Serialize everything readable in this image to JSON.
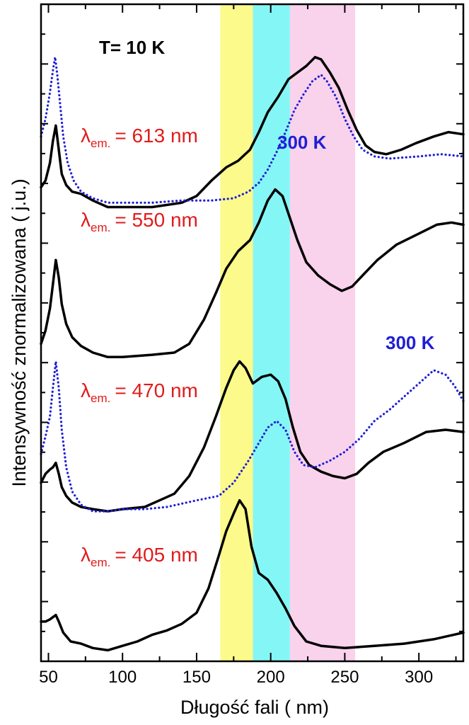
{
  "chart_data": {
    "type": "line",
    "title": "",
    "xlabel": "Długość fali  ( nm)",
    "ylabel": "Intensywność znormalizowana  ( j.u.)",
    "xlim": [
      45,
      330
    ],
    "xticks": [
      50,
      100,
      150,
      200,
      250,
      300
    ],
    "y_scale": "arbitrary units, vertically offset spectra",
    "y_tick_count": 22,
    "legend": "none",
    "grid": false,
    "annotations": {
      "temperature": "T= 10 K",
      "room_temp_top": "300 K",
      "room_temp_mid": "300 K"
    },
    "emission_labels": [
      {
        "symbol": "λ",
        "sub": "em.",
        "text": "= 613 nm"
      },
      {
        "symbol": "λ",
        "sub": "em.",
        "text": "= 550 nm"
      },
      {
        "symbol": "λ",
        "sub": "em.",
        "text": "= 470 nm"
      },
      {
        "symbol": "λ",
        "sub": "em.",
        "text": "= 405 nm"
      }
    ],
    "bands": [
      {
        "x0": 166,
        "x1": 188,
        "color": "#fbfa8a"
      },
      {
        "x0": 188,
        "x1": 213,
        "color": "#85f6f6"
      },
      {
        "x0": 213,
        "x1": 257,
        "color": "#f9d2ec"
      }
    ],
    "series": [
      {
        "curve": "613 nm, 10 K",
        "style": "solid",
        "color": "#000000",
        "points": [
          [
            45,
            10.05
          ],
          [
            48,
            10.2
          ],
          [
            51,
            10.6
          ],
          [
            53,
            11.1
          ],
          [
            55,
            11.45
          ],
          [
            57,
            10.9
          ],
          [
            59,
            10.35
          ],
          [
            62,
            10.1
          ],
          [
            66,
            9.95
          ],
          [
            72,
            9.9
          ],
          [
            80,
            9.75
          ],
          [
            90,
            9.6
          ],
          [
            100,
            9.6
          ],
          [
            120,
            9.6
          ],
          [
            140,
            9.7
          ],
          [
            150,
            9.85
          ],
          [
            160,
            10.2
          ],
          [
            170,
            10.5
          ],
          [
            178,
            10.65
          ],
          [
            186,
            10.9
          ],
          [
            192,
            11.3
          ],
          [
            198,
            11.75
          ],
          [
            205,
            12.1
          ],
          [
            212,
            12.5
          ],
          [
            218,
            12.65
          ],
          [
            224,
            12.8
          ],
          [
            230,
            13.0
          ],
          [
            234,
            12.95
          ],
          [
            240,
            12.65
          ],
          [
            246,
            12.3
          ],
          [
            252,
            11.8
          ],
          [
            258,
            11.35
          ],
          [
            264,
            11.0
          ],
          [
            270,
            10.85
          ],
          [
            278,
            10.8
          ],
          [
            288,
            10.9
          ],
          [
            298,
            11.05
          ],
          [
            310,
            11.2
          ],
          [
            320,
            11.3
          ],
          [
            330,
            11.25
          ]
        ]
      },
      {
        "curve": "613 nm, 300 K",
        "style": "dotted",
        "color": "#1f1fd6",
        "points": [
          [
            45,
            11.2
          ],
          [
            48,
            11.6
          ],
          [
            51,
            12.2
          ],
          [
            53,
            12.7
          ],
          [
            54.5,
            13.0
          ],
          [
            56,
            12.6
          ],
          [
            58,
            11.9
          ],
          [
            60,
            11.2
          ],
          [
            63,
            10.6
          ],
          [
            67,
            10.2
          ],
          [
            72,
            9.95
          ],
          [
            80,
            9.8
          ],
          [
            90,
            9.7
          ],
          [
            100,
            9.7
          ],
          [
            120,
            9.7
          ],
          [
            140,
            9.75
          ],
          [
            160,
            9.75
          ],
          [
            175,
            9.8
          ],
          [
            185,
            9.95
          ],
          [
            192,
            10.15
          ],
          [
            198,
            10.45
          ],
          [
            204,
            10.85
          ],
          [
            210,
            11.3
          ],
          [
            216,
            11.8
          ],
          [
            222,
            12.15
          ],
          [
            228,
            12.45
          ],
          [
            234,
            12.6
          ],
          [
            238,
            12.45
          ],
          [
            244,
            12.1
          ],
          [
            250,
            11.6
          ],
          [
            256,
            11.2
          ],
          [
            262,
            10.9
          ],
          [
            270,
            10.75
          ],
          [
            280,
            10.7
          ],
          [
            300,
            10.75
          ],
          [
            315,
            10.8
          ],
          [
            330,
            10.75
          ]
        ]
      },
      {
        "curve": "550 nm, 10 K",
        "style": "solid",
        "color": "#000000",
        "points": [
          [
            45,
            6.5
          ],
          [
            48,
            6.8
          ],
          [
            51,
            7.3
          ],
          [
            53,
            7.85
          ],
          [
            55,
            8.4
          ],
          [
            57,
            8.0
          ],
          [
            59,
            7.4
          ],
          [
            62,
            6.95
          ],
          [
            66,
            6.65
          ],
          [
            72,
            6.45
          ],
          [
            80,
            6.3
          ],
          [
            90,
            6.2
          ],
          [
            100,
            6.2
          ],
          [
            120,
            6.25
          ],
          [
            135,
            6.3
          ],
          [
            145,
            6.5
          ],
          [
            155,
            7.05
          ],
          [
            163,
            7.65
          ],
          [
            170,
            8.2
          ],
          [
            178,
            8.6
          ],
          [
            186,
            8.85
          ],
          [
            192,
            9.25
          ],
          [
            198,
            9.75
          ],
          [
            203,
            10.0
          ],
          [
            208,
            9.85
          ],
          [
            213,
            9.35
          ],
          [
            218,
            8.85
          ],
          [
            224,
            8.35
          ],
          [
            232,
            8.05
          ],
          [
            240,
            7.85
          ],
          [
            248,
            7.7
          ],
          [
            255,
            7.8
          ],
          [
            262,
            8.05
          ],
          [
            272,
            8.4
          ],
          [
            285,
            8.75
          ],
          [
            300,
            9.0
          ],
          [
            312,
            9.2
          ],
          [
            322,
            9.25
          ],
          [
            330,
            9.2
          ]
        ]
      },
      {
        "curve": "470 nm, 10 K",
        "style": "solid",
        "color": "#000000",
        "points": [
          [
            45,
            3.35
          ],
          [
            48,
            3.55
          ],
          [
            51,
            3.65
          ],
          [
            53,
            3.7
          ],
          [
            55,
            3.8
          ],
          [
            57,
            3.55
          ],
          [
            59,
            3.25
          ],
          [
            62,
            3.05
          ],
          [
            66,
            2.9
          ],
          [
            72,
            2.8
          ],
          [
            80,
            2.75
          ],
          [
            90,
            2.7
          ],
          [
            100,
            2.75
          ],
          [
            115,
            2.8
          ],
          [
            125,
            2.95
          ],
          [
            135,
            3.1
          ],
          [
            145,
            3.5
          ],
          [
            155,
            4.15
          ],
          [
            163,
            4.85
          ],
          [
            170,
            5.5
          ],
          [
            175,
            5.9
          ],
          [
            179,
            6.1
          ],
          [
            183,
            5.95
          ],
          [
            188,
            5.6
          ],
          [
            194,
            5.75
          ],
          [
            200,
            5.8
          ],
          [
            205,
            5.65
          ],
          [
            210,
            5.25
          ],
          [
            215,
            4.6
          ],
          [
            220,
            4.05
          ],
          [
            226,
            3.75
          ],
          [
            234,
            3.6
          ],
          [
            242,
            3.5
          ],
          [
            250,
            3.45
          ],
          [
            258,
            3.55
          ],
          [
            266,
            3.8
          ],
          [
            276,
            4.05
          ],
          [
            290,
            4.25
          ],
          [
            305,
            4.5
          ],
          [
            318,
            4.55
          ],
          [
            330,
            4.5
          ]
        ]
      },
      {
        "curve": "470 nm, 300 K",
        "style": "dotted",
        "color": "#1f1fd6",
        "points": [
          [
            45,
            4.0
          ],
          [
            48,
            4.4
          ],
          [
            51,
            4.85
          ],
          [
            53,
            5.5
          ],
          [
            55,
            6.1
          ],
          [
            57,
            5.5
          ],
          [
            59,
            4.55
          ],
          [
            62,
            3.7
          ],
          [
            66,
            3.15
          ],
          [
            72,
            2.85
          ],
          [
            80,
            2.7
          ],
          [
            90,
            2.7
          ],
          [
            100,
            2.75
          ],
          [
            115,
            2.75
          ],
          [
            130,
            2.8
          ],
          [
            150,
            2.95
          ],
          [
            165,
            3.05
          ],
          [
            175,
            3.35
          ],
          [
            185,
            3.85
          ],
          [
            192,
            4.25
          ],
          [
            198,
            4.6
          ],
          [
            204,
            4.75
          ],
          [
            210,
            4.55
          ],
          [
            216,
            4.05
          ],
          [
            222,
            3.75
          ],
          [
            230,
            3.7
          ],
          [
            240,
            3.85
          ],
          [
            250,
            4.05
          ],
          [
            260,
            4.35
          ],
          [
            270,
            4.75
          ],
          [
            280,
            5.0
          ],
          [
            290,
            5.3
          ],
          [
            300,
            5.6
          ],
          [
            310,
            5.9
          ],
          [
            318,
            5.8
          ],
          [
            324,
            5.55
          ],
          [
            330,
            5.2
          ]
        ]
      },
      {
        "curve": "405 nm, 10 K",
        "style": "solid",
        "color": "#000000",
        "points": [
          [
            45,
            0.2
          ],
          [
            48,
            0.2
          ],
          [
            51,
            0.25
          ],
          [
            53,
            0.3
          ],
          [
            55,
            0.35
          ],
          [
            57,
            0.2
          ],
          [
            60,
            -0.05
          ],
          [
            65,
            -0.25
          ],
          [
            72,
            -0.3
          ],
          [
            80,
            -0.4
          ],
          [
            90,
            -0.45
          ],
          [
            100,
            -0.35
          ],
          [
            110,
            -0.25
          ],
          [
            120,
            -0.1
          ],
          [
            130,
            0.0
          ],
          [
            140,
            0.15
          ],
          [
            150,
            0.4
          ],
          [
            158,
            0.95
          ],
          [
            165,
            1.7
          ],
          [
            170,
            2.25
          ],
          [
            175,
            2.65
          ],
          [
            179,
            2.95
          ],
          [
            183,
            2.75
          ],
          [
            187,
            1.9
          ],
          [
            192,
            1.3
          ],
          [
            198,
            1.15
          ],
          [
            204,
            0.85
          ],
          [
            210,
            0.5
          ],
          [
            216,
            0.1
          ],
          [
            224,
            -0.25
          ],
          [
            234,
            -0.35
          ],
          [
            250,
            -0.4
          ],
          [
            270,
            -0.35
          ],
          [
            290,
            -0.3
          ],
          [
            310,
            -0.2
          ],
          [
            330,
            -0.05
          ]
        ]
      }
    ]
  }
}
